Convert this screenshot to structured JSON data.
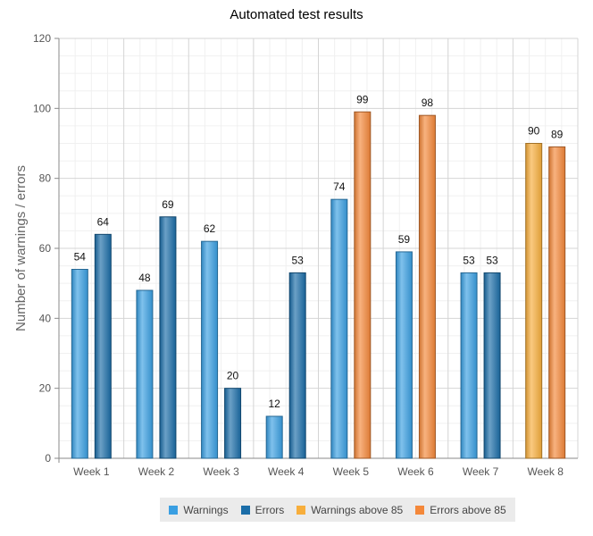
{
  "chart_data": {
    "type": "bar",
    "title": "Automated test results",
    "ylabel": "Number of warnings / errors",
    "xlabel": "",
    "ylim": [
      0,
      120
    ],
    "yticks": [
      0,
      20,
      40,
      60,
      80,
      100,
      120
    ],
    "categories": [
      "Week 1",
      "Week 2",
      "Week 3",
      "Week 4",
      "Week 5",
      "Week 6",
      "Week 7",
      "Week 8"
    ],
    "series": [
      {
        "name": "Warnings",
        "values": [
          54,
          48,
          62,
          12,
          74,
          59,
          53,
          null
        ],
        "color": "#3a9fe2"
      },
      {
        "name": "Errors",
        "values": [
          64,
          69,
          20,
          53,
          null,
          null,
          53,
          null
        ],
        "color": "#1b6da8"
      },
      {
        "name": "Warnings above 85",
        "values": [
          null,
          null,
          null,
          null,
          null,
          null,
          null,
          90
        ],
        "color": "#f7ae3c"
      },
      {
        "name": "Errors above 85",
        "values": [
          null,
          null,
          null,
          null,
          99,
          98,
          null,
          89
        ],
        "color": "#f4883a"
      }
    ],
    "bar_slots": [
      [
        0,
        1
      ],
      [
        0,
        1
      ],
      [
        0,
        1
      ],
      [
        0,
        1
      ],
      [
        0,
        3
      ],
      [
        0,
        3
      ],
      [
        0,
        1
      ],
      [
        2,
        3
      ]
    ],
    "grid": true,
    "legend_position": "bottom"
  }
}
